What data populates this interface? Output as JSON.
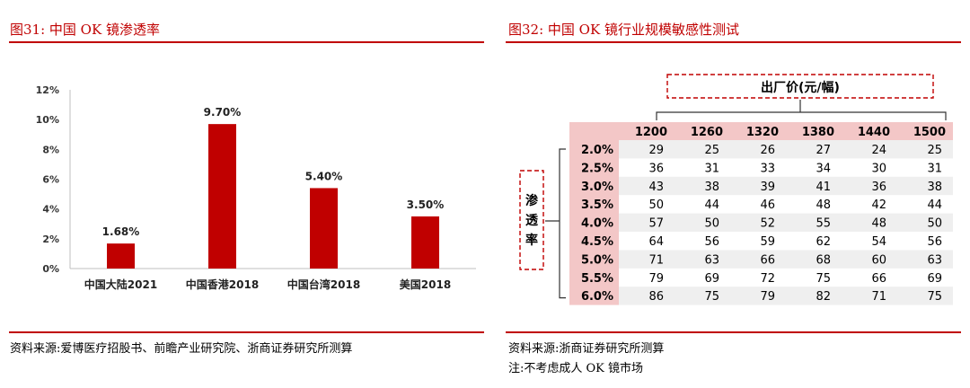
{
  "left_panel": {
    "title": "图31:   中国 OK 镜渗透率",
    "source": "资料来源:爱博医疗招股书、前瞻产业研究院、浙商证券研究所测算"
  },
  "right_panel": {
    "title": "图32:   中国 OK 镜行业规模敏感性测试",
    "source": "资料来源:浙商证券研究所测算",
    "note": "注:不考虑成人 OK 镜市场"
  },
  "colors": {
    "accent": "#c00000",
    "bar": "#c00000",
    "header_bg": "#f3c7c7",
    "row_alt_bg": "#efefef"
  },
  "chart_data": [
    {
      "type": "bar",
      "categories": [
        "中国大陆2021",
        "中国香港2018",
        "中国台湾2018",
        "美国2018"
      ],
      "values": [
        1.68,
        9.7,
        5.4,
        3.5
      ],
      "value_labels": [
        "1.68%",
        "9.70%",
        "5.40%",
        "3.50%"
      ],
      "yticks": [
        "0%",
        "2%",
        "4%",
        "6%",
        "8%",
        "10%",
        "12%"
      ],
      "ylim": [
        0,
        12
      ],
      "grid": false,
      "legend": "none"
    },
    {
      "type": "table",
      "column_header": "出厂价(元/幅)",
      "row_header": "渗透率",
      "columns": [
        "1200",
        "1260",
        "1320",
        "1380",
        "1440",
        "1500"
      ],
      "rows": [
        "2.0%",
        "2.5%",
        "3.0%",
        "3.5%",
        "4.0%",
        "4.5%",
        "5.0%",
        "5.5%",
        "6.0%"
      ],
      "cells": [
        [
          29,
          25,
          26,
          27,
          24,
          25
        ],
        [
          36,
          31,
          33,
          34,
          30,
          31
        ],
        [
          43,
          38,
          39,
          41,
          36,
          38
        ],
        [
          50,
          44,
          46,
          48,
          42,
          44
        ],
        [
          57,
          50,
          52,
          55,
          48,
          50
        ],
        [
          64,
          56,
          59,
          62,
          54,
          56
        ],
        [
          71,
          63,
          66,
          68,
          60,
          63
        ],
        [
          79,
          69,
          72,
          75,
          66,
          69
        ],
        [
          86,
          75,
          79,
          82,
          71,
          75
        ]
      ]
    }
  ]
}
